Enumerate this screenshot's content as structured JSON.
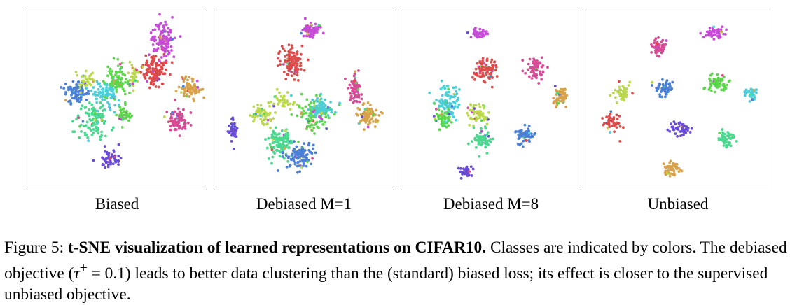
{
  "figure": {
    "panels": [
      {
        "key": "biased",
        "label": "Biased"
      },
      {
        "key": "debiased1",
        "label": "Debiased M=1"
      },
      {
        "key": "debiased8",
        "label": "Debiased M=8"
      },
      {
        "key": "unbiased",
        "label": "Unbiased"
      }
    ],
    "caption": {
      "prefix": "Figure 5: ",
      "bold": "t-SNE visualization of learned representations on CIFAR10.",
      "text1": " Classes are indicated by colors. The debiased objective (",
      "tau": "τ",
      "plus": "+",
      "math_rest": " = 0.1",
      "text2": ") leads to better data clustering than the (standard) biased loss; its effect is closer to the supervised unbiased objective."
    }
  }
}
